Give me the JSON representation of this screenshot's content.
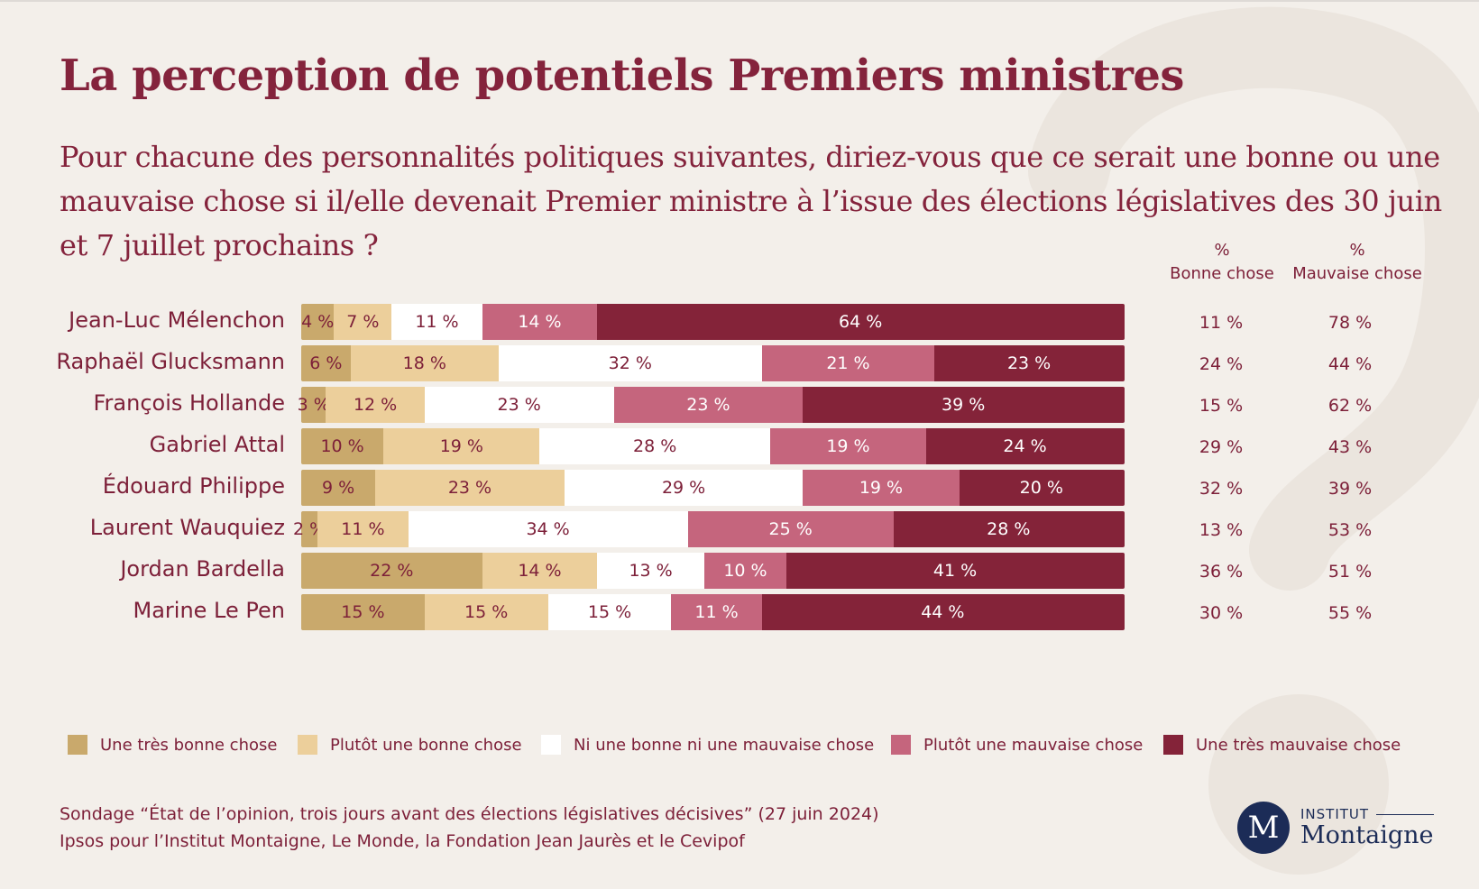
{
  "title": "La perception de potentiels Premiers ministres",
  "subtitle": "Pour chacune des personnalités politiques suivantes, diriez-vous que ce serait une bonne ou une mauvaise chose si il/elle devenait Premier ministre à l’issue des élections législatives des 30 juin et 7 juillet prochains ?",
  "columns": {
    "good": {
      "unit": "%",
      "label": "Bonne chose"
    },
    "bad": {
      "unit": "%",
      "label": "Mauvaise chose"
    }
  },
  "colors": {
    "tres_bonne": "#c9a96c",
    "plutot_bonne": "#eccf9b",
    "ni": "#ffffff",
    "plutot_mauvaise": "#c5657d",
    "tres_mauvaise": "#842339",
    "text_dark": "#7d2039",
    "background": "#f3efea"
  },
  "chart_data": {
    "type": "bar",
    "orientation": "horizontal-stacked-100",
    "categories": [
      "Jean-Luc Mélenchon",
      "Raphaël Glucksmann",
      "François Hollande",
      "Gabriel Attal",
      "Édouard Philippe",
      "Laurent Wauquiez",
      "Jordan Bardella",
      "Marine Le Pen"
    ],
    "series": [
      {
        "name": "Une très bonne chose",
        "values": [
          4,
          6,
          3,
          10,
          9,
          2,
          22,
          15
        ]
      },
      {
        "name": "Plutôt une bonne chose",
        "values": [
          7,
          18,
          12,
          19,
          23,
          11,
          14,
          15
        ]
      },
      {
        "name": "Ni une bonne ni une mauvaise chose",
        "values": [
          11,
          32,
          23,
          28,
          29,
          34,
          13,
          15
        ]
      },
      {
        "name": "Plutôt une mauvaise chose",
        "values": [
          14,
          21,
          23,
          19,
          19,
          25,
          10,
          11
        ]
      },
      {
        "name": "Une très mauvaise chose",
        "values": [
          64,
          23,
          39,
          24,
          20,
          28,
          41,
          44
        ]
      }
    ],
    "bonne_chose": [
      11,
      24,
      15,
      29,
      32,
      13,
      36,
      30
    ],
    "mauvaise_chose": [
      78,
      44,
      62,
      43,
      39,
      53,
      51,
      55
    ],
    "unit": "%"
  },
  "source": {
    "line1": "Sondage “État de l’opinion, trois jours avant des élections législatives décisives” (27 juin 2024)",
    "line2": "Ipsos pour l’Institut Montaigne, Le Monde, la Fondation Jean Jaurès et le Cevipof"
  },
  "logo": {
    "mark": "M",
    "top": "INSTITUT",
    "bottom": "Montaigne"
  }
}
